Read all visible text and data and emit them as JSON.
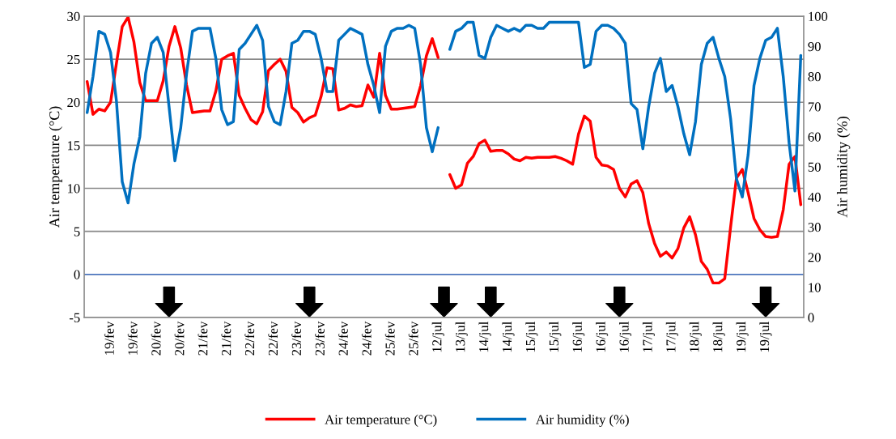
{
  "chart_data": {
    "type": "line",
    "ylabel": "Air temperature (°C)",
    "y2label": "Air humidity (%)",
    "categories": [
      null,
      null,
      null,
      null,
      "19/fev",
      null,
      null,
      null,
      "19/fev",
      null,
      null,
      null,
      "20/fev",
      null,
      null,
      null,
      "20/fev",
      null,
      null,
      null,
      "21/fev",
      null,
      null,
      null,
      "21/fev",
      null,
      null,
      null,
      "22/fev",
      null,
      null,
      null,
      "22/fev",
      null,
      null,
      null,
      "23/fev",
      null,
      null,
      null,
      "23/fev",
      null,
      null,
      null,
      "24/fev",
      null,
      null,
      null,
      "24/fev",
      null,
      null,
      null,
      "25/fev",
      null,
      null,
      null,
      "25/fev",
      null,
      null,
      null,
      "12/jul",
      null,
      null,
      null,
      "13/jul",
      null,
      null,
      null,
      "14/jul",
      null,
      null,
      null,
      "14/jul",
      null,
      null,
      null,
      "15/jul",
      null,
      null,
      null,
      "15/jul",
      null,
      null,
      null,
      "16/jul",
      null,
      null,
      null,
      "16/jul",
      null,
      null,
      null,
      "16/jul",
      null,
      null,
      null,
      "17/jul",
      null,
      null,
      null,
      "17/jul",
      null,
      null,
      null,
      "18/jul",
      null,
      null,
      null,
      "18/jul",
      null,
      null,
      null,
      "19/jul",
      null,
      null,
      null,
      "19/jul",
      null,
      null,
      null,
      null,
      null,
      null
    ],
    "ylim": [
      -5,
      30
    ],
    "yticks": [
      -5,
      0,
      5,
      10,
      15,
      20,
      25,
      30
    ],
    "y2lim": [
      0,
      100
    ],
    "y2ticks": [
      0,
      10,
      20,
      30,
      40,
      50,
      60,
      70,
      80,
      90,
      100
    ],
    "grid": "y",
    "legend": "bottom",
    "line_style": "solid",
    "ref_lines": [
      {
        "axis": "y",
        "value": 0,
        "color": "#4472c4"
      }
    ],
    "series": [
      {
        "name": "Air temperature (°C)",
        "color": "#ff0000",
        "values": [
          22.4,
          18.6,
          19.2,
          19.0,
          20.0,
          24.5,
          28.8,
          29.9,
          27.0,
          22.3,
          20.2,
          20.2,
          20.2,
          22.5,
          26.5,
          28.8,
          26.3,
          22.0,
          18.8,
          18.9,
          19.0,
          19.0,
          21.3,
          25.0,
          25.4,
          25.7,
          20.8,
          19.3,
          18.0,
          17.5,
          18.9,
          23.7,
          24.4,
          25.0,
          23.6,
          19.4,
          18.8,
          17.7,
          18.2,
          18.5,
          20.7,
          24.0,
          23.9,
          19.1,
          19.3,
          19.7,
          19.5,
          19.6,
          22.0,
          20.6,
          25.7,
          20.8,
          19.2,
          19.2,
          19.3,
          19.4,
          19.5,
          21.9,
          25.4,
          27.4,
          25.2,
          null,
          11.6,
          10.0,
          10.4,
          12.9,
          13.7,
          15.2,
          15.6,
          14.3,
          14.4,
          14.4,
          14.0,
          13.4,
          13.2,
          13.6,
          13.5,
          13.6,
          13.6,
          13.6,
          13.7,
          13.5,
          13.2,
          12.8,
          16.3,
          18.4,
          17.8,
          13.6,
          12.7,
          12.6,
          12.2,
          10.0,
          9.0,
          10.5,
          10.9,
          9.5,
          5.9,
          3.6,
          2.1,
          2.6,
          1.9,
          3.0,
          5.4,
          6.7,
          4.6,
          1.5,
          0.6,
          -1.0,
          -1.0,
          -0.5,
          5.5,
          11.2,
          12.2,
          9.5,
          6.5,
          5.2,
          4.4,
          4.3,
          4.4,
          7.5,
          12.8,
          13.7,
          8.1
        ]
      },
      {
        "name": "Air humidity (%)",
        "color": "#0070c0",
        "axis": "y2",
        "values": [
          68,
          80,
          95,
          94,
          88,
          72,
          45,
          38,
          51,
          60,
          81,
          91,
          93,
          88,
          70,
          52,
          63,
          81,
          95,
          96,
          96,
          96,
          86,
          69,
          64,
          65,
          89,
          91,
          94,
          97,
          92,
          70,
          65,
          64,
          75,
          91,
          92,
          95,
          95,
          94,
          86,
          75,
          75,
          92,
          94,
          96,
          95,
          94,
          84,
          77,
          68,
          90,
          95,
          96,
          96,
          97,
          96,
          84,
          63,
          55,
          63,
          null,
          89,
          95,
          96,
          98,
          98,
          87,
          86,
          93,
          97,
          96,
          95,
          96,
          95,
          97,
          97,
          96,
          96,
          98,
          98,
          98,
          98,
          98,
          98,
          83,
          84,
          95,
          97,
          97,
          96,
          94,
          91,
          71,
          69,
          56,
          70,
          81,
          86,
          75,
          77,
          70,
          61,
          54,
          65,
          84,
          91,
          93,
          86,
          80,
          66,
          46,
          40,
          54,
          77,
          86,
          92,
          93,
          96,
          80,
          58,
          42,
          87
        ]
      },
      {
        "type": "scatter",
        "color": "#000000",
        "values": [
          null,
          null,
          null,
          null,
          null,
          null,
          null,
          null,
          null,
          null,
          null,
          null,
          null,
          null,
          -3.2,
          null,
          null,
          null,
          null,
          null,
          null,
          null,
          null,
          null,
          null,
          null,
          null,
          null,
          null,
          null,
          null,
          null,
          null,
          null,
          null,
          null,
          null,
          null,
          -3.2,
          null,
          null,
          null,
          null,
          null,
          null,
          null,
          null,
          null,
          null,
          null,
          null,
          null,
          null,
          null,
          null,
          null,
          null,
          null,
          null,
          null,
          null,
          -3.2,
          null,
          null,
          null,
          null,
          null,
          null,
          null,
          -3.2,
          null,
          null,
          null,
          null,
          null,
          null,
          null,
          null,
          null,
          null,
          null,
          null,
          null,
          null,
          null,
          null,
          null,
          null,
          null,
          null,
          null,
          -3.2,
          null,
          null,
          null,
          null,
          null,
          null,
          null,
          null,
          null,
          null,
          null,
          null,
          null,
          null,
          null,
          null,
          null,
          null,
          null,
          null,
          null,
          null,
          null,
          null,
          -3.2,
          null,
          null,
          null,
          null,
          null,
          null
        ]
      }
    ]
  }
}
